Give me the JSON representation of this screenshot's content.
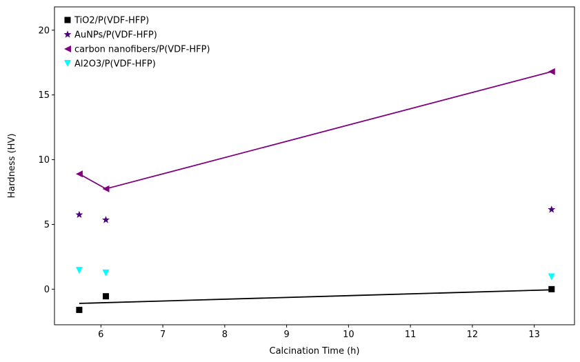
{
  "chart_data": {
    "type": "scatter",
    "title": "",
    "xlabel": "Calcination Time (h)",
    "ylabel": "Hardness (HV)",
    "xlim": [
      5.25,
      13.65
    ],
    "ylim": [
      -2.75,
      21.8
    ],
    "xticks": [
      6,
      7,
      8,
      9,
      10,
      11,
      12,
      13
    ],
    "yticks": [
      0,
      5,
      10,
      15,
      20
    ],
    "grid": false,
    "legend_position": "top-left",
    "series": [
      {
        "name": "TiO2/P(VDF-HFP)",
        "marker": "square",
        "color": "#000000",
        "x": [
          5.65,
          6.08,
          13.28
        ],
        "y": [
          -1.6,
          -0.55,
          0.0
        ],
        "fit_line": {
          "x": [
            5.65,
            13.28
          ],
          "y": [
            -1.1,
            -0.05
          ]
        }
      },
      {
        "name": "AuNPs/P(VDF-HFP)",
        "marker": "star",
        "color": "#4b0082",
        "x": [
          5.65,
          6.08,
          13.28
        ],
        "y": [
          5.75,
          5.35,
          6.15
        ]
      },
      {
        "name": "carbon nanofibers/P(VDF-HFP)",
        "marker": "triangle-left",
        "color": "#800080",
        "x": [
          5.65,
          6.08,
          13.28
        ],
        "y": [
          8.9,
          7.75,
          16.8
        ],
        "connect": true
      },
      {
        "name": "Al2O3/P(VDF-HFP)",
        "marker": "triangle-down",
        "color": "#00ffff",
        "x": [
          5.65,
          6.08,
          13.28
        ],
        "y": [
          1.45,
          1.25,
          0.95
        ]
      }
    ]
  }
}
